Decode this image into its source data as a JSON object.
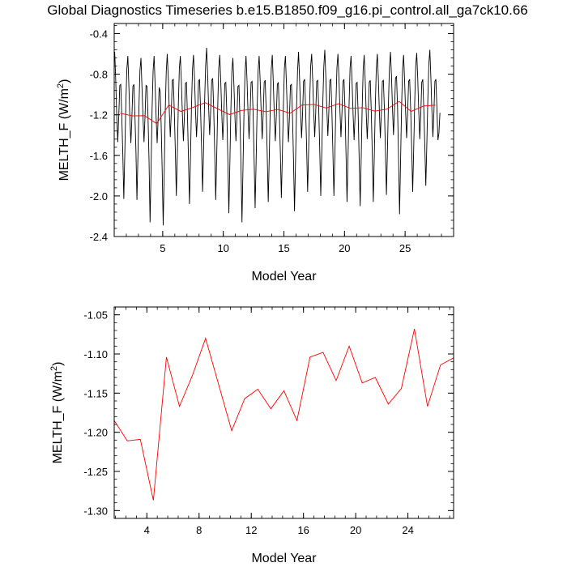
{
  "title": "Global Diagnostics Timeseries b.e15.B1850.f09_g16.pi_control.all_ga7ck10.66",
  "chart_data": [
    {
      "type": "line",
      "xlabel": "Model Year",
      "ylabel": "MELTH_F (W/m²)",
      "ylabel_main": "MELTH_F (W/m",
      "ylabel_sup": "2",
      "ylabel_end": ")",
      "xlim": [
        1,
        29
      ],
      "ylim": [
        -2.4,
        -0.3
      ],
      "xticks": [
        5,
        10,
        15,
        20,
        25
      ],
      "yticks": [
        -2.4,
        -2.0,
        -1.6,
        -1.2,
        -0.8,
        -0.4
      ],
      "ytick_labels": [
        "-2.4",
        "-2.0",
        "-1.6",
        "-1.2",
        "-0.8",
        "-0.4"
      ],
      "grid": false,
      "series": [
        {
          "color": "#000000",
          "x_start": 1.0417,
          "x_step": 0.08333,
          "y": [
            -0.58,
            -0.86,
            -1.21,
            -1.47,
            -1.22,
            -0.91,
            -0.9,
            -1.22,
            -1.58,
            -2.03,
            -1.58,
            -1.1,
            -0.75,
            -0.62,
            -0.91,
            -1.23,
            -1.48,
            -1.23,
            -0.92,
            -0.9,
            -1.2,
            -1.55,
            -2.04,
            -1.6,
            -1.12,
            -0.76,
            -0.64,
            -0.93,
            -1.22,
            -1.47,
            -1.22,
            -0.91,
            -0.92,
            -1.23,
            -1.66,
            -2.26,
            -1.72,
            -1.15,
            -0.77,
            -0.62,
            -0.9,
            -1.22,
            -1.48,
            -1.24,
            -0.93,
            -0.97,
            -1.3,
            -1.75,
            -2.29,
            -1.77,
            -1.18,
            -0.78,
            -0.6,
            -0.82,
            -1.15,
            -1.42,
            -1.18,
            -0.86,
            -0.85,
            -1.17,
            -1.55,
            -2.0,
            -1.58,
            -1.1,
            -0.74,
            -0.62,
            -0.88,
            -1.19,
            -1.46,
            -1.21,
            -0.89,
            -0.88,
            -1.2,
            -1.62,
            -2.08,
            -1.63,
            -1.12,
            -0.75,
            -0.61,
            -0.84,
            -1.16,
            -1.42,
            -1.18,
            -0.87,
            -0.85,
            -1.15,
            -1.52,
            -1.96,
            -1.53,
            -1.07,
            -0.72,
            -0.54,
            -0.8,
            -1.13,
            -1.4,
            -1.16,
            -0.86,
            -0.84,
            -1.14,
            -1.56,
            -2.04,
            -1.6,
            -1.11,
            -0.74,
            -0.61,
            -0.87,
            -1.19,
            -1.45,
            -1.2,
            -0.89,
            -0.88,
            -1.18,
            -1.64,
            -2.17,
            -1.68,
            -1.15,
            -0.77,
            -0.64,
            -0.9,
            -1.21,
            -1.46,
            -1.22,
            -0.92,
            -0.91,
            -1.24,
            -1.7,
            -2.26,
            -1.72,
            -1.17,
            -0.79,
            -0.62,
            -0.86,
            -1.18,
            -1.44,
            -1.19,
            -0.88,
            -0.87,
            -1.18,
            -1.63,
            -2.12,
            -1.66,
            -1.14,
            -0.76,
            -0.62,
            -0.86,
            -1.17,
            -1.44,
            -1.19,
            -0.88,
            -0.86,
            -1.17,
            -1.6,
            -2.06,
            -1.62,
            -1.12,
            -0.75,
            -0.61,
            -0.88,
            -1.2,
            -1.46,
            -1.21,
            -0.9,
            -0.88,
            -1.19,
            -1.58,
            -2.02,
            -1.59,
            -1.11,
            -0.74,
            -0.62,
            -0.89,
            -1.21,
            -1.47,
            -1.22,
            -0.91,
            -0.9,
            -1.21,
            -1.64,
            -2.15,
            -1.67,
            -1.15,
            -0.77,
            -0.58,
            -0.84,
            -1.16,
            -1.43,
            -1.18,
            -0.87,
            -0.85,
            -1.14,
            -1.52,
            -1.96,
            -1.54,
            -1.08,
            -0.72,
            -0.6,
            -0.85,
            -1.16,
            -1.42,
            -1.18,
            -0.87,
            -0.86,
            -1.15,
            -1.55,
            -2.0,
            -1.57,
            -1.09,
            -0.73,
            -0.56,
            -0.82,
            -1.14,
            -1.41,
            -1.17,
            -0.86,
            -0.85,
            -1.16,
            -1.56,
            -2.0,
            -1.58,
            -1.1,
            -0.74,
            -0.6,
            -0.84,
            -1.16,
            -1.42,
            -1.18,
            -0.87,
            -0.85,
            -1.14,
            -1.58,
            -2.06,
            -1.61,
            -1.11,
            -0.74,
            -0.62,
            -0.88,
            -1.19,
            -1.45,
            -1.2,
            -0.89,
            -0.88,
            -1.18,
            -1.62,
            -2.1,
            -1.64,
            -1.13,
            -0.75,
            -0.61,
            -0.86,
            -1.18,
            -1.44,
            -1.19,
            -0.88,
            -0.86,
            -1.16,
            -1.58,
            -2.06,
            -1.61,
            -1.11,
            -0.74,
            -0.6,
            -0.84,
            -1.16,
            -1.43,
            -1.18,
            -0.87,
            -0.86,
            -1.14,
            -1.54,
            -1.99,
            -1.56,
            -1.09,
            -0.73,
            -0.58,
            -0.81,
            -1.13,
            -1.4,
            -1.15,
            -0.84,
            -0.82,
            -1.12,
            -1.6,
            -2.18,
            -1.66,
            -1.13,
            -0.75,
            -0.61,
            -0.86,
            -1.17,
            -1.43,
            -1.18,
            -0.87,
            -0.85,
            -1.14,
            -1.52,
            -1.96,
            -1.54,
            -1.08,
            -0.72,
            -0.59,
            -0.84,
            -1.16,
            -1.44,
            -1.2,
            -0.88,
            -0.85,
            -1.14,
            -1.5,
            -1.9,
            -1.5,
            -1.05,
            -0.7,
            -0.56,
            -0.83,
            -1.15,
            -1.42,
            -1.18,
            -0.87,
            -0.85,
            -1.14,
            -1.45,
            -1.38,
            -1.18
          ]
        },
        {
          "color": "#ff0000",
          "x": [
            1.5,
            2.5,
            3.5,
            4.5,
            5.5,
            6.5,
            7.5,
            8.5,
            9.5,
            10.5,
            11.5,
            12.5,
            13.5,
            14.5,
            15.5,
            16.5,
            17.5,
            18.5,
            19.5,
            20.5,
            21.5,
            22.5,
            23.5,
            24.5,
            25.5,
            26.5,
            27.5
          ],
          "y": [
            -1.185,
            -1.211,
            -1.209,
            -1.287,
            -1.104,
            -1.167,
            -1.127,
            -1.08,
            -1.139,
            -1.198,
            -1.157,
            -1.145,
            -1.17,
            -1.147,
            -1.185,
            -1.104,
            -1.098,
            -1.134,
            -1.09,
            -1.137,
            -1.13,
            -1.164,
            -1.144,
            -1.068,
            -1.167,
            -1.114,
            -1.105
          ]
        }
      ]
    },
    {
      "type": "line",
      "xlabel": "Model Year",
      "ylabel": "MELTH_F (W/m²)",
      "ylabel_main": "MELTH_F (W/m",
      "ylabel_sup": "2",
      "ylabel_end": ")",
      "xlim": [
        1.5,
        27.5
      ],
      "ylim": [
        -1.31,
        -1.04
      ],
      "xticks": [
        4,
        8,
        12,
        16,
        20,
        24
      ],
      "yticks": [
        -1.3,
        -1.25,
        -1.2,
        -1.15,
        -1.1,
        -1.05
      ],
      "ytick_labels": [
        "-1.30",
        "-1.25",
        "-1.20",
        "-1.15",
        "-1.10",
        "-1.05"
      ],
      "grid": false,
      "series": [
        {
          "color": "#ff0000",
          "x": [
            1.5,
            2.5,
            3.5,
            4.5,
            5.5,
            6.5,
            7.5,
            8.5,
            9.5,
            10.5,
            11.5,
            12.5,
            13.5,
            14.5,
            15.5,
            16.5,
            17.5,
            18.5,
            19.5,
            20.5,
            21.5,
            22.5,
            23.5,
            24.5,
            25.5,
            26.5,
            27.5
          ],
          "y": [
            -1.185,
            -1.211,
            -1.209,
            -1.287,
            -1.104,
            -1.167,
            -1.127,
            -1.08,
            -1.139,
            -1.198,
            -1.157,
            -1.145,
            -1.17,
            -1.147,
            -1.185,
            -1.104,
            -1.098,
            -1.134,
            -1.09,
            -1.137,
            -1.13,
            -1.164,
            -1.144,
            -1.068,
            -1.167,
            -1.114,
            -1.105
          ]
        }
      ]
    }
  ]
}
